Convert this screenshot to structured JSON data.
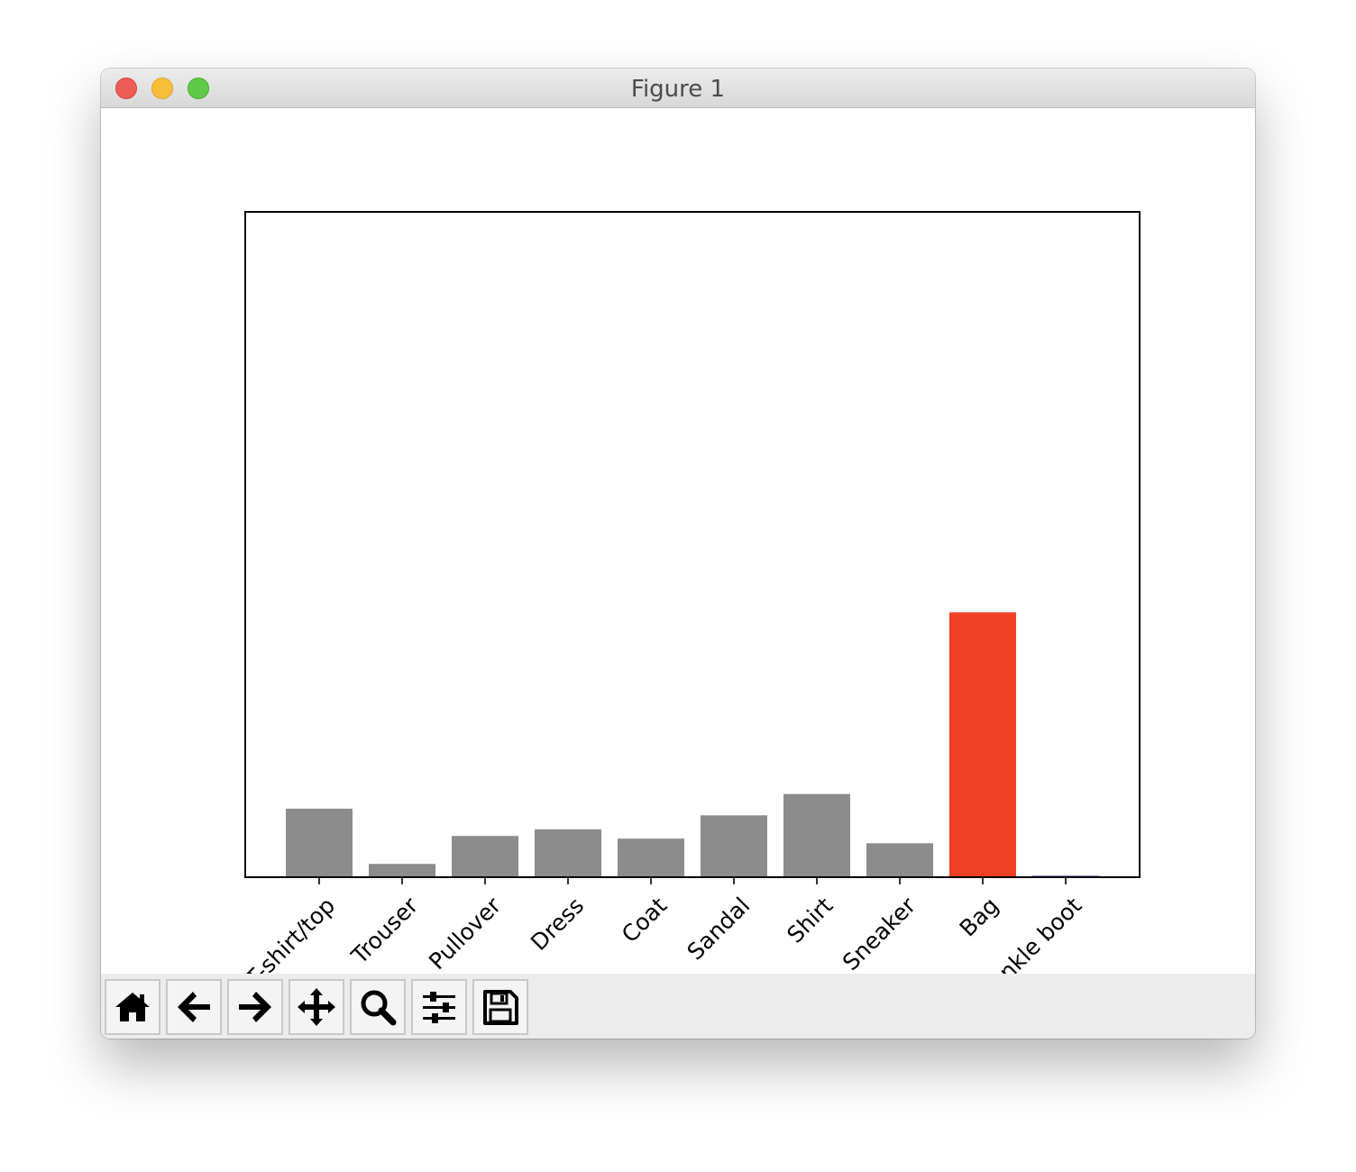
{
  "window": {
    "title": "Figure 1"
  },
  "toolbar": {
    "buttons": [
      {
        "name": "home-button",
        "icon": "home-icon"
      },
      {
        "name": "back-button",
        "icon": "arrow-left-icon"
      },
      {
        "name": "forward-button",
        "icon": "arrow-right-icon"
      },
      {
        "name": "pan-button",
        "icon": "move-icon"
      },
      {
        "name": "zoom-button",
        "icon": "magnifier-icon"
      },
      {
        "name": "configure-subplots-button",
        "icon": "sliders-icon"
      },
      {
        "name": "save-button",
        "icon": "floppy-disk-icon"
      }
    ]
  },
  "chart_data": {
    "type": "bar",
    "categories": [
      "T-shirt/top",
      "Trouser",
      "Pullover",
      "Dress",
      "Coat",
      "Sandal",
      "Shirt",
      "Sneaker",
      "Bag",
      "Ankle boot"
    ],
    "values": [
      0.103,
      0.02,
      0.062,
      0.072,
      0.058,
      0.093,
      0.125,
      0.051,
      0.398,
      0.002
    ],
    "colors": [
      "#8c8c8c",
      "#8c8c8c",
      "#8c8c8c",
      "#8c8c8c",
      "#8c8c8c",
      "#8c8c8c",
      "#8c8c8c",
      "#8c8c8c",
      "#f04124",
      "#1f1f8c"
    ],
    "ylim": [
      0,
      1
    ],
    "xlabel": "",
    "ylabel": "",
    "title": "",
    "grid": false,
    "yticks_visible": false
  }
}
